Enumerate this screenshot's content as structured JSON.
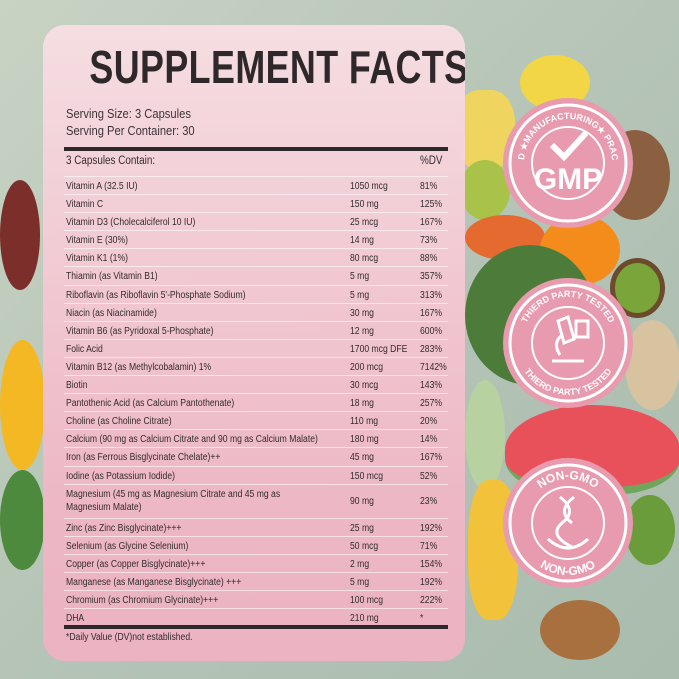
{
  "title": "SUPPLEMENT FACTS",
  "serving_size": "Serving Size: 3 Capsules",
  "serving_per_container": "Serving Per Container: 30",
  "table": {
    "header_label": "3 Capsules Contain:",
    "header_dv": "%DV",
    "rows": [
      {
        "name": "Vitamin A (32.5 IU)",
        "amount": "1050 mcg",
        "dv": "81%"
      },
      {
        "name": "Vitamin C",
        "amount": "150 mg",
        "dv": "125%"
      },
      {
        "name": "Vitamin D3 (Cholecalciferol 10 IU)",
        "amount": "25 mcg",
        "dv": "167%"
      },
      {
        "name": "Vitamin E (30%)",
        "amount": "14 mg",
        "dv": "73%"
      },
      {
        "name": "Vitamin K1 (1%)",
        "amount": "80 mcg",
        "dv": "88%"
      },
      {
        "name": "Thiamin (as Vitamin B1)",
        "amount": "5 mg",
        "dv": "357%"
      },
      {
        "name": "Riboflavin (as Riboflavin 5'-Phosphate Sodium)",
        "amount": "5 mg",
        "dv": "313%"
      },
      {
        "name": "Niacin (as Niacinamide)",
        "amount": "30 mg",
        "dv": "167%"
      },
      {
        "name": "Vitamin B6 (as Pyridoxal 5-Phosphate)",
        "amount": "12 mg",
        "dv": "600%"
      },
      {
        "name": "Folic Acid",
        "amount": "1700 mcg DFE",
        "dv": "283%"
      },
      {
        "name": "Vitamin B12 (as Methylcobalamin) 1%",
        "amount": "200 mcg",
        "dv": "7142%"
      },
      {
        "name": "Biotin",
        "amount": "30 mcg",
        "dv": "143%"
      },
      {
        "name": "Pantothenic Acid (as Calcium Pantothenate)",
        "amount": "18 mg",
        "dv": "257%"
      },
      {
        "name": "Choline (as Choline Citrate)",
        "amount": "110 mg",
        "dv": "20%"
      },
      {
        "name": "Calcium (90 mg as Calcium Citrate and 90 mg as Calcium Malate)",
        "amount": "180 mg",
        "dv": "14%"
      },
      {
        "name": "Iron (as Ferrous Bisglycinate Chelate)++",
        "amount": "45 mg",
        "dv": "167%"
      },
      {
        "name": "Iodine (as Potassium Iodide)",
        "amount": "150 mcg",
        "dv": "52%"
      },
      {
        "name": "Magnesium (45 mg as Magnesium Citrate and 45 mg as Magnesium Malate)",
        "amount": "90 mg",
        "dv": "23%"
      },
      {
        "name": "Zinc (as Zinc Bisglycinate)+++",
        "amount": "25 mg",
        "dv": "192%"
      },
      {
        "name": "Selenium (as Glycine Selenium)",
        "amount": "50 mcg",
        "dv": "71%"
      },
      {
        "name": "Copper (as Copper Bisglycinate)+++",
        "amount": "2 mg",
        "dv": "154%"
      },
      {
        "name": "Manganese (as Manganese Bisglycinate) +++",
        "amount": "5 mg",
        "dv": "192%"
      },
      {
        "name": "Chromium (as Chromium Glycinate)+++",
        "amount": "100 mcg",
        "dv": "222%"
      },
      {
        "name": "DHA",
        "amount": "210 mg",
        "dv": "*"
      }
    ]
  },
  "footnote": "*Daily Value (DV)not established.",
  "badges": [
    {
      "top": "GOOD ★MANUFACTURING★ PRACTICE",
      "center": "GMP",
      "icon": "checkmark-icon"
    },
    {
      "top": "THIERD PARTY TESTED",
      "bottom": "THIERD PARTY TESTED",
      "icon": "microscope-icon"
    },
    {
      "top": "NON-GMO",
      "bottom": "NON-GMO",
      "icon": "dna-icon"
    }
  ],
  "colors": {
    "badge": "#e89aae",
    "panel": "#f3c9d3",
    "text": "#2b2326"
  }
}
